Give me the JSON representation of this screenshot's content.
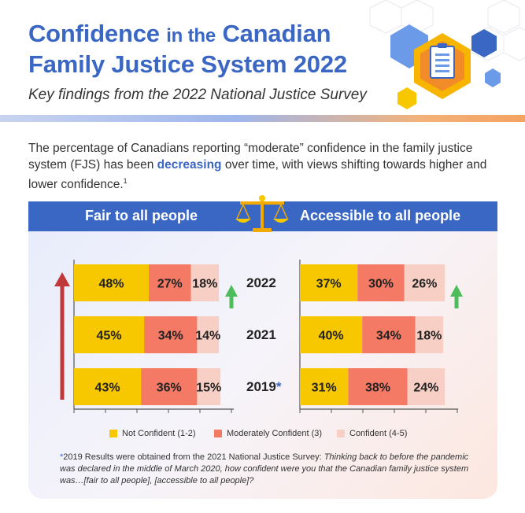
{
  "header": {
    "title_a": "Confidence",
    "title_b": "in the",
    "title_c": "Canadian",
    "title_line2": "Family Justice System 2022",
    "subtitle": "Key findings from the 2022 National Justice Survey"
  },
  "intro": {
    "part1": "The percentage of Canadians reporting “moderate” confidence in the family justice system (FJS) has been ",
    "highlight": "decreasing",
    "part2": " over time, with views shifting towards higher and lower confidence.",
    "sup": "1"
  },
  "panel": {
    "left_heading": "Fair to all people",
    "right_heading": "Accessible to all people"
  },
  "chart_data": [
    {
      "type": "bar",
      "orientation": "horizontal-stacked",
      "title": "Fair to all people",
      "categories": [
        "2022",
        "2021",
        "2019*"
      ],
      "series": [
        {
          "name": "Not Confident (1-2)",
          "values": [
            48,
            45,
            43
          ],
          "labels": [
            "48%",
            "45%",
            "43%"
          ]
        },
        {
          "name": "Moderately Confident (3)",
          "values": [
            27,
            34,
            36
          ],
          "labels": [
            "27%",
            "34%",
            "36%"
          ]
        },
        {
          "name": "Confident (4-5)",
          "values": [
            18,
            14,
            15
          ],
          "labels": [
            "18%",
            "14%",
            "15%"
          ]
        }
      ]
    },
    {
      "type": "bar",
      "orientation": "horizontal-stacked",
      "title": "Accessible to all people",
      "categories": [
        "2022",
        "2021",
        "2019*"
      ],
      "series": [
        {
          "name": "Not Confident (1-2)",
          "values": [
            37,
            40,
            31
          ],
          "labels": [
            "37%",
            "40%",
            "31%"
          ]
        },
        {
          "name": "Moderately Confident (3)",
          "values": [
            30,
            34,
            38
          ],
          "labels": [
            "30%",
            "34%",
            "38%"
          ]
        },
        {
          "name": "Confident (4-5)",
          "values": [
            26,
            18,
            24
          ],
          "labels": [
            "26%",
            "18%",
            "24%"
          ]
        }
      ]
    }
  ],
  "years": {
    "y2022": "2022",
    "y2021": "2021",
    "y2019": "2019",
    "y2019_star": "*"
  },
  "legend": {
    "not_confident": "Not Confident (1-2)",
    "moderately": "Moderately Confident (3)",
    "confident": "Confident (4-5)"
  },
  "colors": {
    "not_confident": "#f7c800",
    "moderately": "#f47a66",
    "confident": "#f8cfc5",
    "accent_blue": "#3a66c4",
    "arrow_red": "#c0383a",
    "arrow_green": "#4dbd5c"
  },
  "footnote": {
    "star": "*",
    "lead": "2019 Results were obtained from the 2021 National Justice Survey: ",
    "italic": "Thinking back to before the pandemic was declared in the middle of March 2020, how confident were you that the Canadian family justice system was…[fair to all people], [accessible to all people]?"
  },
  "icons": [
    "clipboard-icon",
    "scales-icon",
    "arrow-up-icon"
  ]
}
